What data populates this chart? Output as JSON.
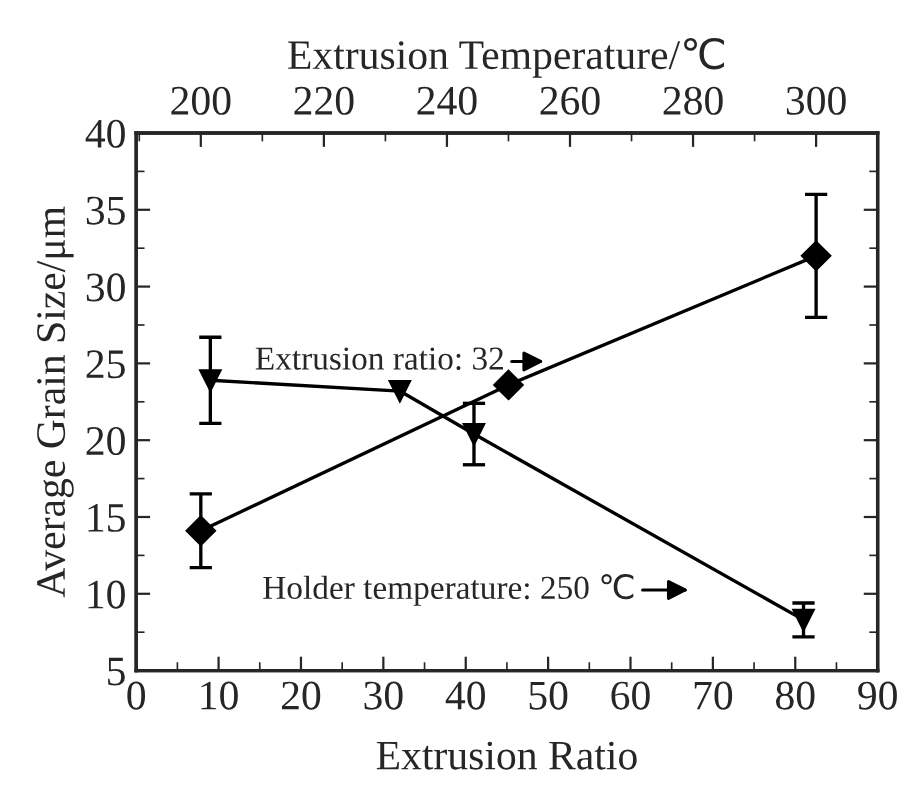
{
  "chart_data": {
    "type": "line",
    "xlabel": "Extrusion Ratio",
    "x2label": "Extrusion Temperature/℃",
    "ylabel": "Average Grain Size/μm",
    "xlim": [
      0,
      90
    ],
    "xticks": [
      0,
      10,
      20,
      30,
      40,
      50,
      60,
      70,
      80,
      90
    ],
    "x2lim": [
      189.5,
      310
    ],
    "x2ticks": [
      200,
      220,
      240,
      260,
      280,
      300
    ],
    "ylim": [
      5,
      40
    ],
    "yticks": [
      5,
      10,
      15,
      20,
      25,
      30,
      35,
      40
    ],
    "grid": false,
    "line_style": "solid",
    "series": [
      {
        "color": "#000000",
        "axis": "x2",
        "marker": "diamond",
        "x": [
          200,
          250,
          300
        ],
        "values": [
          14.1,
          23.6,
          32.0
        ],
        "errors": [
          2.4,
          null,
          4.0
        ]
      },
      {
        "color": "#000000",
        "marker": "triangle",
        "x": [
          9,
          32,
          41,
          81
        ],
        "values": [
          23.9,
          23.2,
          20.4,
          8.3
        ],
        "errors": [
          2.8,
          null,
          2.0,
          1.1
        ]
      }
    ],
    "annotations": [
      "Extrusion ratio: 32",
      "Holder temperature: 250 ℃"
    ]
  }
}
